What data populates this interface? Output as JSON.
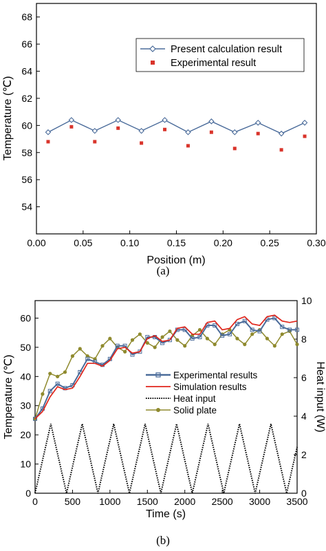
{
  "chart_data": [
    {
      "type": "line",
      "caption": "(a)",
      "xlabel": "Position (m)",
      "ylabel": "Temperature (℃)",
      "xlim": [
        0.0,
        0.3
      ],
      "ylim": [
        52,
        69
      ],
      "xticks": [
        "0.00",
        "0.05",
        "0.10",
        "0.15",
        "0.20",
        "0.25",
        "0.30"
      ],
      "yticks": [
        "54",
        "56",
        "58",
        "60",
        "62",
        "64",
        "66",
        "68"
      ],
      "legend_position": "top-right",
      "grid": false,
      "series": [
        {
          "name": "Present calculation result",
          "marker": "open-diamond-line",
          "color": "#4a6b9a",
          "x": [
            0.0125,
            0.0375,
            0.0625,
            0.0875,
            0.1125,
            0.1375,
            0.1625,
            0.1875,
            0.2125,
            0.2375,
            0.2625,
            0.2875
          ],
          "y": [
            59.5,
            60.4,
            59.6,
            60.4,
            59.6,
            60.4,
            59.5,
            60.3,
            59.5,
            60.2,
            59.4,
            60.2
          ]
        },
        {
          "name": "Experimental result",
          "marker": "square",
          "color": "#d9342b",
          "x": [
            0.0125,
            0.0375,
            0.0625,
            0.0875,
            0.1125,
            0.1375,
            0.1625,
            0.1875,
            0.2125,
            0.2375,
            0.2625,
            0.2875
          ],
          "y": [
            58.8,
            59.9,
            58.8,
            59.8,
            58.7,
            59.7,
            58.5,
            59.5,
            58.3,
            59.4,
            58.2,
            59.2
          ]
        }
      ]
    },
    {
      "type": "line",
      "caption": "(b)",
      "xlabel": "Time (s)",
      "ylabel": "Temperature (℃)",
      "y2label": "Heat input (W)",
      "xlim": [
        0,
        3500
      ],
      "ylim": [
        0,
        66
      ],
      "y2lim": [
        0,
        10
      ],
      "xticks": [
        "0",
        "500",
        "1000",
        "1500",
        "2000",
        "2500",
        "3000",
        "3500"
      ],
      "yticks": [
        "0",
        "10",
        "20",
        "30",
        "40",
        "50",
        "60"
      ],
      "y2ticks": [
        "0",
        "2",
        "4",
        "6",
        "8",
        "10"
      ],
      "legend_position": "center-right",
      "grid": false,
      "series": [
        {
          "name": "Experimental results",
          "axis": "left",
          "style": "line-with-square-markers",
          "color": "#4a6b9a",
          "x": [
            0,
            100,
            200,
            300,
            400,
            500,
            600,
            700,
            800,
            900,
            1000,
            1100,
            1200,
            1300,
            1400,
            1500,
            1600,
            1700,
            1800,
            1900,
            2000,
            2100,
            2200,
            2300,
            2400,
            2500,
            2600,
            2700,
            2800,
            2900,
            3000,
            3100,
            3200,
            3300,
            3400,
            3500
          ],
          "y": [
            25.5,
            29,
            35,
            37.5,
            36,
            37,
            41.5,
            46,
            45,
            44,
            46,
            50.5,
            50.5,
            47.5,
            48.5,
            53.5,
            53.5,
            51.5,
            52.5,
            56,
            56,
            53,
            53.5,
            57.5,
            57.5,
            54,
            54.5,
            58,
            59,
            56,
            55.5,
            59.5,
            60,
            57,
            56,
            56
          ]
        },
        {
          "name": "Simulation results",
          "axis": "left",
          "style": "solid-line",
          "color": "#e0251b",
          "x": [
            0,
            100,
            200,
            300,
            400,
            500,
            600,
            700,
            800,
            900,
            1000,
            1100,
            1200,
            1300,
            1400,
            1500,
            1600,
            1700,
            1800,
            1900,
            2000,
            2100,
            2200,
            2300,
            2400,
            2500,
            2600,
            2700,
            2800,
            2900,
            3000,
            3100,
            3200,
            3300,
            3400,
            3500
          ],
          "y": [
            25.5,
            28,
            33,
            36.5,
            35.5,
            36,
            40,
            44.5,
            44.5,
            43.5,
            45.5,
            49.5,
            50,
            48,
            48.5,
            53,
            54,
            52,
            52.5,
            56.5,
            57,
            54.5,
            54.5,
            58.5,
            59,
            56,
            56.5,
            59.5,
            60.5,
            58,
            57.5,
            60.5,
            61,
            59,
            58.5,
            59
          ]
        },
        {
          "name": "Heat input",
          "axis": "right",
          "style": "dotted-line",
          "color": "#000000",
          "x": [
            0,
            210,
            420,
            630,
            840,
            1050,
            1260,
            1470,
            1680,
            1890,
            2100,
            2310,
            2520,
            2730,
            2940,
            3150,
            3360,
            3500
          ],
          "y": [
            0,
            3.6,
            0,
            3.6,
            0,
            3.6,
            0,
            3.6,
            0,
            3.6,
            0,
            3.6,
            0,
            3.6,
            0,
            3.6,
            0,
            2.4
          ]
        },
        {
          "name": "Solid plate",
          "axis": "left",
          "style": "line-with-circle-markers",
          "color": "#8f8a2e",
          "x": [
            0,
            100,
            200,
            300,
            400,
            500,
            600,
            700,
            800,
            900,
            1000,
            1100,
            1200,
            1300,
            1400,
            1500,
            1600,
            1700,
            1800,
            1900,
            2000,
            2100,
            2200,
            2300,
            2400,
            2500,
            2600,
            2700,
            2800,
            2900,
            3000,
            3100,
            3200,
            3300,
            3400,
            3500
          ],
          "y": [
            25.5,
            34,
            41,
            40,
            41.5,
            47,
            49.5,
            47,
            46,
            50.5,
            53,
            50,
            48.5,
            52.5,
            54.5,
            51.5,
            50,
            53.5,
            55.5,
            52.5,
            50.5,
            54,
            56,
            53,
            51,
            54.5,
            56,
            53,
            51,
            54.5,
            56,
            53,
            50.5,
            54.5,
            55.5,
            51
          ]
        }
      ]
    }
  ]
}
